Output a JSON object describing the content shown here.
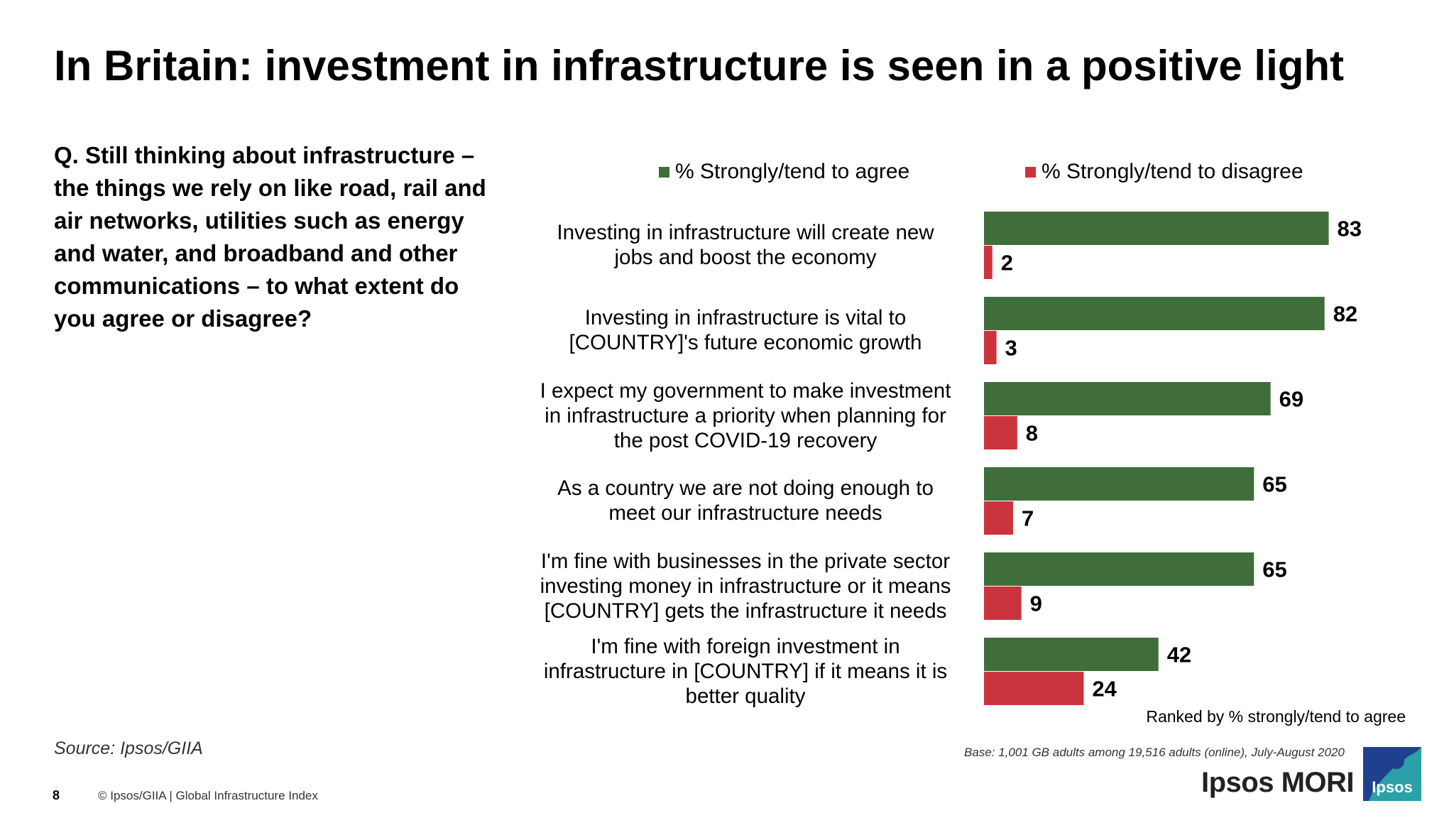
{
  "title": "In Britain: investment in infrastructure is seen in a positive light",
  "question": "Q. Still thinking about infrastructure – the things we rely on like road, rail and air networks, utilities such as energy and water, and broadband and other communications – to what extent do you agree or disagree?",
  "legend": {
    "agree": "% Strongly/tend to agree",
    "disagree": "% Strongly/tend to disagree"
  },
  "colors": {
    "agree": "#3f6e3a",
    "disagree": "#cc343d",
    "logo": "#2aa0a8"
  },
  "chart_data": {
    "type": "bar",
    "orientation": "horizontal",
    "categories": [
      [
        "Investing in infrastructure will create new",
        "jobs and boost the economy"
      ],
      [
        "Investing in infrastructure is vital to",
        "[COUNTRY]'s future economic growth"
      ],
      [
        "I expect my government to make investment",
        "in infrastructure a priority when planning for",
        "the post COVID-19 recovery"
      ],
      [
        "As a country we are not doing enough to",
        "meet our infrastructure needs"
      ],
      [
        "I'm fine with businesses in the private sector",
        "investing money in infrastructure or it means",
        "[COUNTRY] gets the infrastructure it needs"
      ],
      [
        "I'm fine with foreign investment in",
        "infrastructure in [COUNTRY] if it means it is",
        "better quality"
      ]
    ],
    "series": [
      {
        "name": "% Strongly/tend to agree",
        "values": [
          83,
          82,
          69,
          65,
          65,
          42
        ]
      },
      {
        "name": "% Strongly/tend to disagree",
        "values": [
          2,
          3,
          8,
          7,
          9,
          24
        ]
      }
    ],
    "xlim": [
      0,
      100
    ],
    "data_labels": true,
    "grid": false,
    "legend_position": "top"
  },
  "ranked_note": "Ranked by % strongly/tend to agree",
  "source": "Source: Ipsos/GIIA",
  "base": "Base: 1,001 GB adults among 19,516 adults (online), July-August 2020",
  "footer": {
    "page_number": "8",
    "text": "© Ipsos/GIIA | Global Infrastructure Index"
  },
  "brand": {
    "name": "Ipsos MORI",
    "logo_text": "Ipsos"
  }
}
